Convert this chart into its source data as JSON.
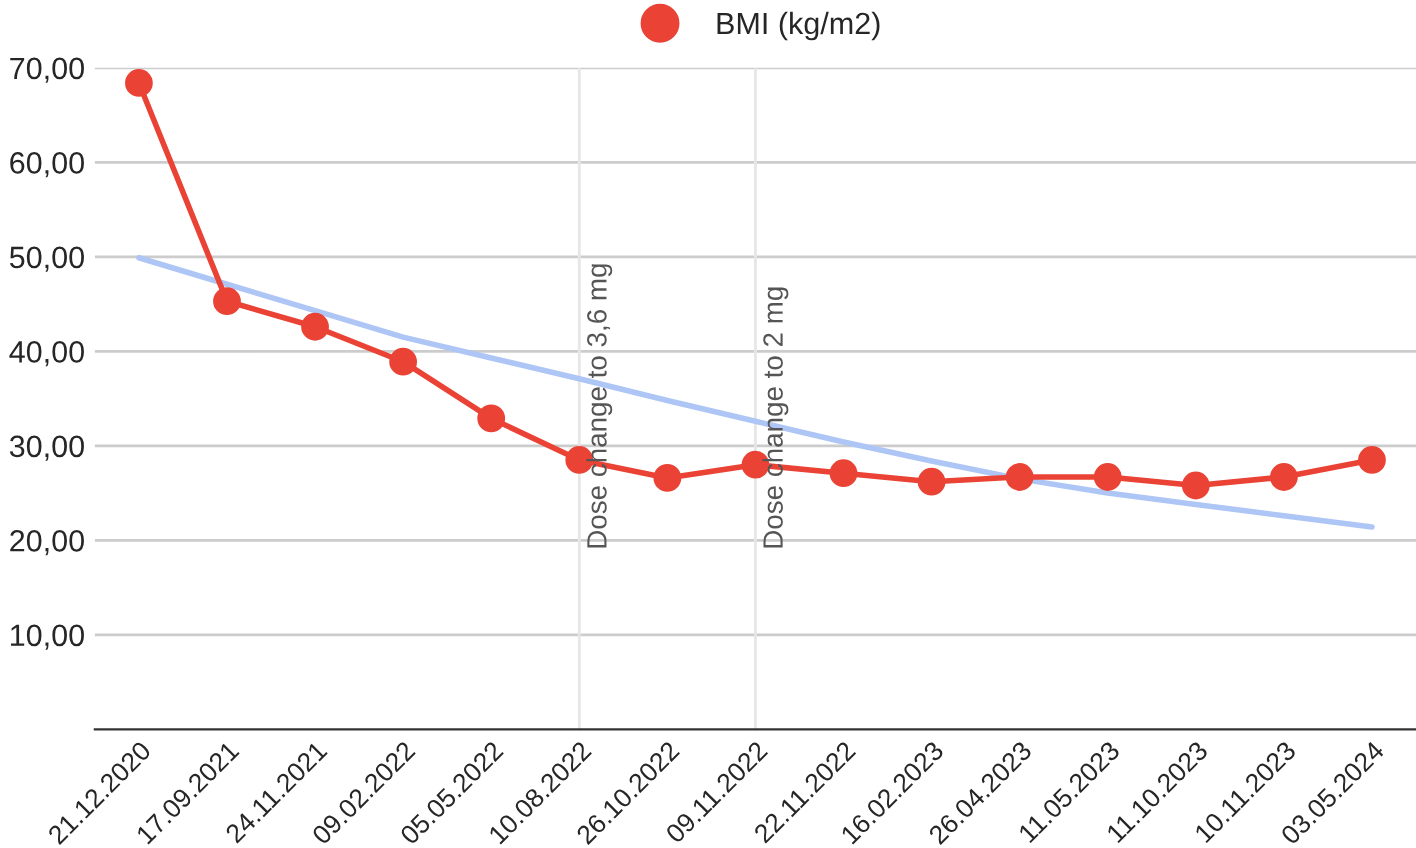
{
  "chart_data": {
    "type": "line",
    "categories": [
      "21.12.2020",
      "17.09.2021",
      "24.11.2021",
      "09.02.2022",
      "05.05.2022",
      "10.08.2022",
      "26.10.2022",
      "09.11.2022",
      "22.11.2022",
      "16.02.2023",
      "26.04.2023",
      "11.05.2023",
      "11.10.2023",
      "10.11.2023",
      "03.05.2024"
    ],
    "series": [
      {
        "name": "BMI (kg/m2)",
        "color": "#ea4335",
        "marker": "circle",
        "values": [
          68.4,
          45.3,
          42.6,
          38.9,
          32.9,
          28.5,
          26.6,
          28.0,
          27.1,
          26.2,
          26.7,
          26.7,
          25.8,
          26.7,
          28.5
        ]
      },
      {
        "type": "line",
        "color": "#aec6f5",
        "marker": "none",
        "values": [
          49.9,
          47.1,
          44.3,
          41.5,
          39.3,
          37.1,
          34.8,
          32.6,
          30.4,
          28.4,
          26.5,
          25.0,
          23.8,
          22.6,
          21.4
        ]
      }
    ],
    "ylim": [
      0,
      70
    ],
    "yticks": [
      {
        "value": 10,
        "label": "10,00"
      },
      {
        "value": 20,
        "label": "20,00"
      },
      {
        "value": 30,
        "label": "30,00"
      },
      {
        "value": 40,
        "label": "40,00"
      },
      {
        "value": 50,
        "label": "50,00"
      },
      {
        "value": 60,
        "label": "60,00"
      },
      {
        "value": 70,
        "label": "70,00"
      }
    ],
    "grid": "y",
    "legend": "top",
    "ref_lines": [
      {
        "axis": "x",
        "value": "10.08.2022",
        "label": "Dose change to 3,6 mg",
        "color": "#e6e6e6"
      },
      {
        "axis": "x",
        "value": "09.11.2022",
        "label": "Dose change to 2 mg",
        "color": "#e6e6e6"
      }
    ]
  }
}
